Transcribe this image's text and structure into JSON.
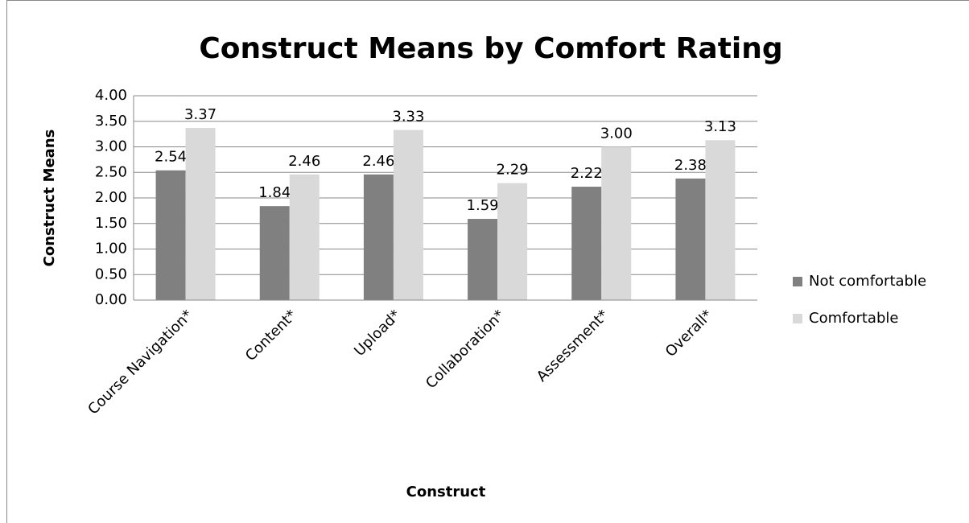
{
  "chart_data": {
    "type": "bar",
    "title": "Construct Means by Comfort Rating",
    "x_label": "Construct",
    "y_label": "Construct Means",
    "categories": [
      "Course Navigation*",
      "Content*",
      "Upload*",
      "Collaboration*",
      "Assessment*",
      "Overall*"
    ],
    "series": [
      {
        "name": "Not comfortable",
        "color": "#808080",
        "values": [
          2.54,
          1.84,
          2.46,
          1.59,
          2.22,
          2.38
        ],
        "value_labels": [
          "2.54",
          "1.84",
          "2.46",
          "1.59",
          "2.22",
          "2.38"
        ]
      },
      {
        "name": "Comfortable",
        "color": "#d9d9d9",
        "values": [
          3.37,
          2.46,
          3.33,
          2.29,
          3.0,
          3.13
        ],
        "value_labels": [
          "3.37",
          "2.46",
          "3.33",
          "2.29",
          "3.00",
          "3.13"
        ]
      }
    ],
    "ylim": [
      0,
      4
    ],
    "yticks": [
      {
        "value": 0,
        "label": "0.00"
      },
      {
        "value": 0.5,
        "label": "0.50"
      },
      {
        "value": 1,
        "label": "1.00"
      },
      {
        "value": 1.5,
        "label": "1.50"
      },
      {
        "value": 2,
        "label": "2.00"
      },
      {
        "value": 2.5,
        "label": "2.50"
      },
      {
        "value": 3,
        "label": "3.00"
      },
      {
        "value": 3.5,
        "label": "3.50"
      },
      {
        "value": 4,
        "label": "4.00"
      }
    ],
    "grid": true,
    "legend": "right"
  }
}
